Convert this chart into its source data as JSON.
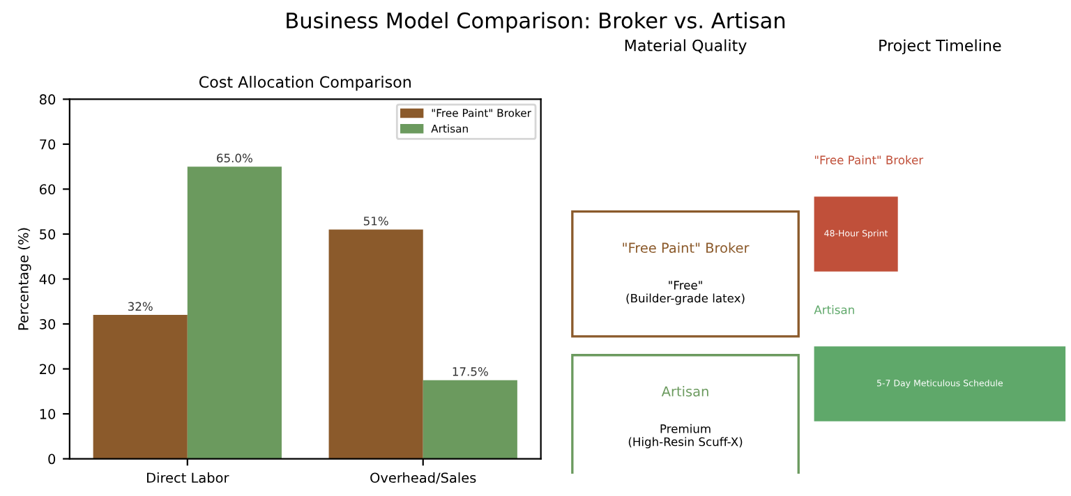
{
  "chart_data": [
    {
      "type": "bar",
      "title": "Cost Allocation Comparison",
      "annotations": [
        "Business Model Comparison: Broker vs. Artisan"
      ],
      "ylabel": "Percentage (%)",
      "categories": [
        "Direct Labor",
        "Overhead/Sales"
      ],
      "series": [
        {
          "name": "\"Free Paint\" Broker",
          "color": "#8b5a2b",
          "values": [
            32,
            51
          ],
          "value_labels": [
            "32%",
            "51%"
          ]
        },
        {
          "name": "Artisan",
          "color": "#6b9a5e",
          "values": [
            65.0,
            17.5
          ],
          "value_labels": [
            "65.0%",
            "17.5%"
          ]
        }
      ],
      "ylim": [
        0,
        80
      ],
      "yticks": [
        0,
        10,
        20,
        30,
        40,
        50,
        60,
        70,
        80
      ],
      "legend": "top right",
      "grid": false
    },
    {
      "type": "other",
      "title": "Material Quality",
      "categories": [
        "\"Free Paint\" Broker",
        "Artisan"
      ],
      "colors": [
        "#8b5a2b",
        "#6b9a5e"
      ],
      "annotations": [
        "\"Free\"\n(Builder-grade latex)",
        "Premium\n(High-Resin Scuff-X)"
      ]
    },
    {
      "type": "bar",
      "orientation": "horizontal",
      "title": "Project Timeline",
      "categories": [
        "\"Free Paint\" Broker",
        "Artisan"
      ],
      "values": [
        48,
        144
      ],
      "xlim": [
        0,
        144
      ],
      "colors": [
        "#c0503a",
        "#5fa86a"
      ],
      "value_labels": [
        "48-Hour Sprint",
        "5-7 Day Meticulous Schedule"
      ]
    }
  ]
}
